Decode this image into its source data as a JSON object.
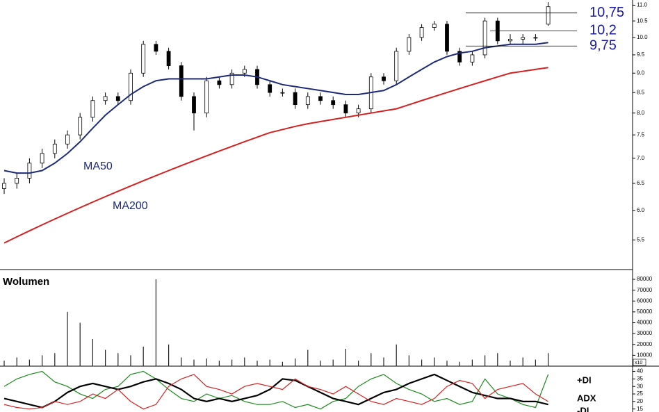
{
  "chart_data": [
    {
      "type": "candlestick",
      "open": [
        6.4,
        6.5,
        6.6,
        6.9,
        7.1,
        7.3,
        7.5,
        7.9,
        8.3,
        8.4,
        8.3,
        9.0,
        9.8,
        9.6,
        9.2,
        8.4,
        8.0,
        8.8,
        8.7,
        9.0,
        9.1,
        8.7,
        8.5,
        8.5,
        8.2,
        8.4,
        8.3,
        8.2,
        8.0,
        8.1,
        8.9,
        8.8,
        9.6,
        10.0,
        10.3,
        10.4,
        9.6,
        9.3,
        9.5,
        10.5,
        9.9,
        9.95,
        10.0,
        10.4
      ],
      "high": [
        6.6,
        6.7,
        7.0,
        7.2,
        7.4,
        7.6,
        8.0,
        8.4,
        8.5,
        8.5,
        9.1,
        9.9,
        9.9,
        9.7,
        9.3,
        8.5,
        8.9,
        8.9,
        9.1,
        9.2,
        9.2,
        8.8,
        8.6,
        8.6,
        8.5,
        8.5,
        8.4,
        8.3,
        8.2,
        9.0,
        9.0,
        9.7,
        10.1,
        10.4,
        10.5,
        10.5,
        9.7,
        9.6,
        10.6,
        10.6,
        10.1,
        10.1,
        10.1,
        11.1
      ],
      "low": [
        6.3,
        6.4,
        6.5,
        6.8,
        7.0,
        7.2,
        7.4,
        7.8,
        8.2,
        8.2,
        8.2,
        8.9,
        9.5,
        9.1,
        8.3,
        7.6,
        7.9,
        8.6,
        8.6,
        8.9,
        8.6,
        8.4,
        8.4,
        8.1,
        8.1,
        8.2,
        8.1,
        7.9,
        7.9,
        8.0,
        8.7,
        8.7,
        9.5,
        9.9,
        10.2,
        9.5,
        9.2,
        9.2,
        9.4,
        9.8,
        9.8,
        9.8,
        9.9,
        10.35
      ],
      "close": [
        6.5,
        6.6,
        6.9,
        7.1,
        7.3,
        7.5,
        7.9,
        8.3,
        8.4,
        8.3,
        9.0,
        9.8,
        9.6,
        9.2,
        8.4,
        8.0,
        8.8,
        8.7,
        9.0,
        9.1,
        8.7,
        8.5,
        8.5,
        8.2,
        8.4,
        8.3,
        8.2,
        8.0,
        8.1,
        8.9,
        8.8,
        9.6,
        10.0,
        10.3,
        10.4,
        9.6,
        9.3,
        9.5,
        10.5,
        9.9,
        9.95,
        10.0,
        10.0,
        10.95
      ],
      "overlays": [
        {
          "name": "MA50",
          "color": "#1c2a7a",
          "values": [
            6.75,
            6.7,
            6.7,
            6.75,
            6.9,
            7.1,
            7.35,
            7.65,
            7.95,
            8.2,
            8.45,
            8.65,
            8.8,
            8.85,
            8.85,
            8.85,
            8.85,
            8.9,
            8.95,
            8.95,
            8.9,
            8.8,
            8.7,
            8.65,
            8.6,
            8.55,
            8.5,
            8.45,
            8.45,
            8.5,
            8.55,
            8.7,
            8.9,
            9.1,
            9.3,
            9.45,
            9.55,
            9.6,
            9.7,
            9.75,
            9.8,
            9.8,
            9.8,
            9.85
          ]
        },
        {
          "name": "MA200",
          "color": "#d42020",
          "values": [
            5.45,
            5.55,
            5.65,
            5.75,
            5.85,
            5.95,
            6.05,
            6.15,
            6.25,
            6.35,
            6.45,
            6.55,
            6.65,
            6.75,
            6.85,
            6.95,
            7.05,
            7.15,
            7.25,
            7.35,
            7.45,
            7.55,
            7.62,
            7.69,
            7.75,
            7.8,
            7.85,
            7.9,
            7.95,
            8.0,
            8.05,
            8.1,
            8.2,
            8.3,
            8.4,
            8.5,
            8.6,
            8.7,
            8.8,
            8.9,
            9.0,
            9.05,
            9.1,
            9.15
          ]
        }
      ],
      "lines": [
        {
          "value": 10.75,
          "label": "10,75"
        },
        {
          "value": 10.2,
          "label": "10,2"
        },
        {
          "value": 9.75,
          "label": "9,75"
        }
      ],
      "log_scale": true,
      "ylim": [
        5.07,
        11.17
      ],
      "yticks": [
        {
          "value": 5.5,
          "label": "5.5"
        },
        {
          "value": 6,
          "label": "6.0"
        },
        {
          "value": 6.5,
          "label": "6.5"
        },
        {
          "value": 7,
          "label": "7.0"
        },
        {
          "value": 7.5,
          "label": "7.5"
        },
        {
          "value": 8,
          "label": "8.0"
        },
        {
          "value": 8.5,
          "label": "8.5"
        },
        {
          "value": 9,
          "label": "9.0"
        },
        {
          "value": 9.5,
          "label": "9.5"
        },
        {
          "value": 10,
          "label": "10.0"
        },
        {
          "value": 10.5,
          "label": "10.5"
        },
        {
          "value": 11,
          "label": "11.0"
        }
      ]
    },
    {
      "type": "bar",
      "title": "Wolumen",
      "axis_note": "x10",
      "color": "#222222",
      "values": [
        5000,
        8000,
        6000,
        10000,
        12000,
        50000,
        40000,
        25000,
        15000,
        12000,
        10000,
        18000,
        80000,
        20000,
        8000,
        6000,
        7000,
        5000,
        6000,
        8000,
        5000,
        6000,
        4000,
        7000,
        15000,
        5000,
        6000,
        16000,
        5000,
        12000,
        8000,
        20000,
        10000,
        6000,
        8000,
        5000,
        4000,
        6000,
        10000,
        12000,
        5000,
        8000,
        6000,
        12000
      ],
      "ylim": [
        0,
        84500
      ],
      "yticks": [
        10000,
        20000,
        30000,
        40000,
        50000,
        60000,
        70000,
        80000
      ]
    },
    {
      "type": "line",
      "series": [
        {
          "name": "+DI",
          "color": "#1a8a1a",
          "values": [
            30,
            35,
            38,
            40,
            33,
            30,
            25,
            22,
            28,
            30,
            38,
            40,
            35,
            28,
            22,
            20,
            25,
            22,
            24,
            20,
            18,
            18,
            20,
            16,
            18,
            15,
            20,
            22,
            30,
            35,
            38,
            32,
            28,
            25,
            20,
            22,
            18,
            20,
            35,
            25,
            22,
            18,
            16,
            38
          ]
        },
        {
          "name": "ADX",
          "color": "#000000",
          "values": [
            22,
            20,
            18,
            16,
            20,
            26,
            30,
            32,
            30,
            28,
            30,
            33,
            35,
            32,
            28,
            22,
            20,
            22,
            20,
            22,
            24,
            28,
            35,
            34,
            30,
            26,
            22,
            20,
            18,
            22,
            26,
            28,
            32,
            35,
            38,
            34,
            30,
            26,
            24,
            22,
            22,
            20,
            20,
            18
          ]
        },
        {
          "name": "-DI",
          "color": "#d42020",
          "values": [
            18,
            16,
            15,
            16,
            20,
            18,
            20,
            25,
            22,
            28,
            20,
            15,
            18,
            30,
            35,
            38,
            30,
            28,
            25,
            30,
            32,
            30,
            28,
            35,
            30,
            28,
            25,
            30,
            25,
            20,
            18,
            22,
            20,
            18,
            22,
            30,
            34,
            32,
            22,
            28,
            30,
            32,
            25,
            20
          ]
        }
      ],
      "ylim": [
        13,
        43.5
      ],
      "yticks": [
        15,
        20,
        25,
        30,
        35,
        40
      ]
    }
  ]
}
